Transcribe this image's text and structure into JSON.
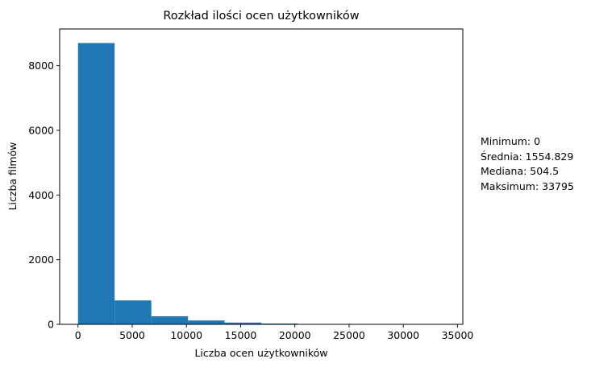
{
  "chart_data": {
    "type": "bar",
    "subtype": "histogram",
    "title": "Rozkład ilości ocen użytkowników",
    "xlabel": "Liczba ocen użytkowników",
    "ylabel": "Liczba filmów",
    "bin_edges": [
      0,
      3379.5,
      6759,
      10138.5,
      13518,
      16897.5,
      20277,
      23656.5,
      27036,
      30415.5,
      33795
    ],
    "values": [
      8700,
      740,
      250,
      120,
      55,
      25,
      8,
      4,
      2,
      1
    ],
    "xlim": [
      -1690,
      35485
    ],
    "ylim": [
      0,
      9135
    ],
    "xticks": [
      0,
      5000,
      10000,
      15000,
      20000,
      25000,
      30000,
      35000
    ],
    "yticks": [
      0,
      2000,
      4000,
      6000,
      8000
    ],
    "bar_color": "#1f77b4",
    "grid": false
  },
  "stats": {
    "min": "Minimum: 0",
    "mean": "Średnia: 1554.829",
    "median": "Mediana: 504.5",
    "max": "Maksimum: 33795"
  }
}
